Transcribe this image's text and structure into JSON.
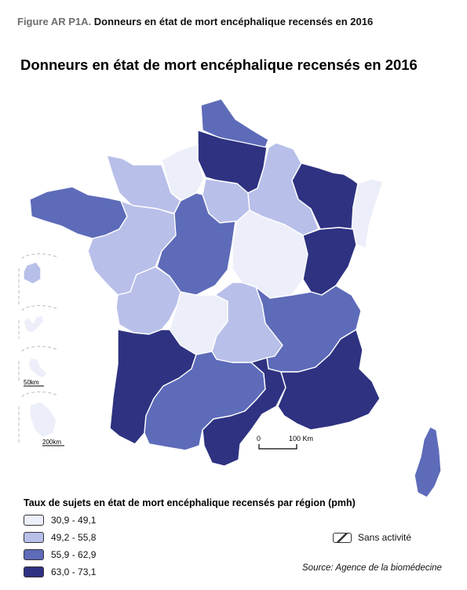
{
  "caption": {
    "label": "Figure AR P1A.",
    "text": " Donneurs en état de mort encéphalique recensés en 2016"
  },
  "title": "Donneurs en état de mort encéphalique recensés en 2016",
  "legend": {
    "title": "Taux de sujets en état de mort encéphalique recensés par région (pmh)",
    "classes": [
      {
        "label": "30,9 - 49,1",
        "color": "#eceef9"
      },
      {
        "label": "49,2 - 55,8",
        "color": "#b8bfe9"
      },
      {
        "label": "55,9 - 62,9",
        "color": "#5d6bb9"
      },
      {
        "label": "63,0 - 73,1",
        "color": "#2e3281"
      }
    ],
    "no_activity": "Sans activité"
  },
  "scale": {
    "zero": "0",
    "distance": "100 Km"
  },
  "insets": {
    "scale_a": "50km",
    "scale_b": "200km"
  },
  "source": "Source: Agence de la biomédecine"
}
